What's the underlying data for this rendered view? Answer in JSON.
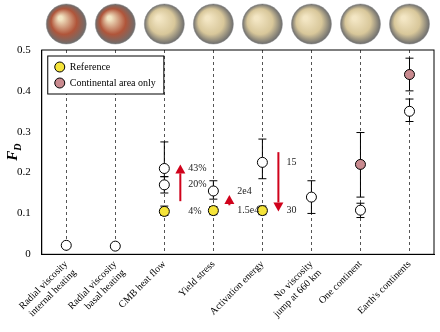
{
  "chart_data": {
    "type": "scatter",
    "ylabel": "F",
    "ylabel_subscript": "D",
    "categories": [
      "Radial viscosity internal heating",
      "Radial viscosity basal heating",
      "CMB heat flow",
      "Yield stress",
      "Activation energy",
      "No viscosity jump at 660 km",
      "One continent",
      "Earth's continents"
    ],
    "ylim": [
      0,
      0.5
    ],
    "yticks": [
      0,
      0.1,
      0.2,
      0.3,
      0.4,
      0.5
    ],
    "grid": true,
    "legend": "upper left",
    "series": [
      {
        "color": "#ffffff",
        "marker": "circle",
        "points": [
          {
            "category": "Radial viscosity internal heating",
            "value": 0.022
          },
          {
            "category": "Radial viscosity basal heating",
            "value": 0.02
          },
          {
            "category": "CMB heat flow",
            "value": 0.17,
            "error_low": 0.15,
            "error_high": 0.19,
            "label": "20%"
          },
          {
            "category": "CMB heat flow",
            "value": 0.21,
            "error_low": 0.19,
            "error_high": 0.275,
            "label": "43%"
          },
          {
            "category": "Yield stress",
            "value": 0.155,
            "error_low": 0.135,
            "error_high": 0.18,
            "label": "2e4"
          },
          {
            "category": "Activation energy",
            "value": 0.225,
            "error_low": 0.185,
            "error_high": 0.282,
            "label": "15"
          },
          {
            "category": "No viscosity jump at 660 km",
            "value": 0.14,
            "error_low": 0.1,
            "error_high": 0.18
          },
          {
            "category": "One continent",
            "value": 0.108,
            "error_low": 0.09,
            "error_high": 0.125
          },
          {
            "category": "Earth's continents",
            "value": 0.35,
            "error_low": 0.325,
            "error_high": 0.38
          }
        ]
      },
      {
        "name": "Reference",
        "color": "#f5e43a",
        "marker": "circle",
        "points": [
          {
            "category": "CMB heat flow",
            "value": 0.105,
            "error_low": 0.095,
            "error_high": 0.118,
            "label": "4%"
          },
          {
            "category": "Yield stress",
            "value": 0.107,
            "error_low": 0.097,
            "error_high": 0.117,
            "label": "1.5e4"
          },
          {
            "category": "Activation energy",
            "value": 0.107,
            "error_low": 0.097,
            "error_high": 0.118,
            "label": "30"
          }
        ]
      },
      {
        "name": "Continental area only",
        "color": "#c98a8f",
        "marker": "circle",
        "points": [
          {
            "category": "One continent",
            "value": 0.22,
            "error_low": 0.14,
            "error_high": 0.298
          },
          {
            "category": "Earth's continents",
            "value": 0.44,
            "error_low": 0.4,
            "error_high": 0.48
          }
        ]
      }
    ],
    "arrows": [
      {
        "category": "CMB heat flow",
        "from": 0.13,
        "to": 0.22
      },
      {
        "category": "Yield stress",
        "from": 0.12,
        "to": 0.145
      },
      {
        "category": "Activation energy",
        "from": 0.25,
        "to": 0.105
      }
    ]
  }
}
